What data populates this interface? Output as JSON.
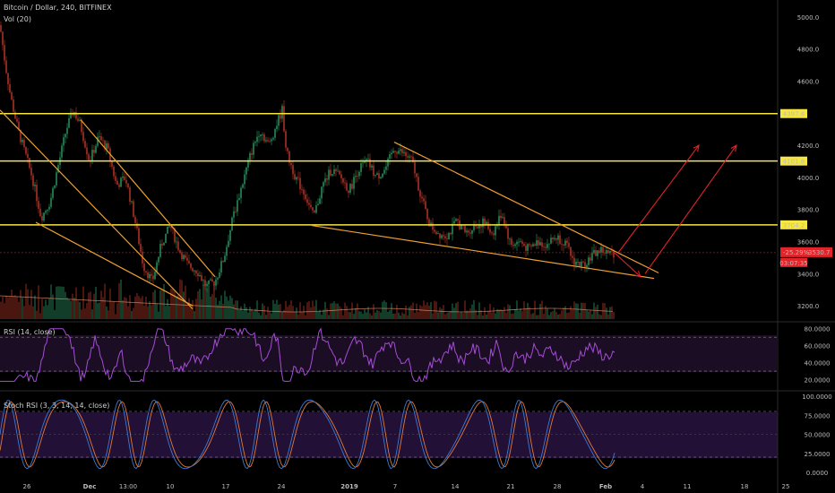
{
  "header": {
    "title": "Bitcoin / Dollar, 240, BITFINEX",
    "volume_label": "Vol (20)",
    "rsi_label": "RSI (14, close)",
    "stoch_label": "Stoch RSI (3, 3, 14, 14, close)"
  },
  "colors": {
    "background": "#000000",
    "up": "#2e9e67",
    "down": "#c0392b",
    "level_line": "#f5e642",
    "trendline": "#f0a030",
    "arrow": "#e0242a",
    "rsi_line": "#a64dd6",
    "rsi_band": "#1a0d24",
    "stoch_k": "#3a7bd5",
    "stoch_d": "#e07a3a",
    "stoch_band": "#3a1a5a",
    "price_badge": "#e0242a",
    "level_badge": "#f5e642"
  },
  "x_axis": {
    "labels": [
      "26",
      "Dec",
      "13:00",
      "10",
      "17",
      "24",
      "2019",
      "7",
      "14",
      "21",
      "28",
      "Feb",
      "4",
      "11",
      "18",
      "25"
    ]
  },
  "price_axis": {
    "labels": [
      "5000.0",
      "4800.0",
      "4600.0",
      "4397.8",
      "4200.0",
      "4101.8",
      "4000.0",
      "3800.0",
      "3704.2",
      "3600.0",
      "3530.7",
      "3400.0",
      "3200.0"
    ],
    "badge_change": "-25.29%",
    "badge_price": "3530.7",
    "badge_countdown": "03:07:35"
  },
  "rsi_axis": {
    "labels": [
      "80.0000",
      "60.0000",
      "40.0000",
      "20.0000"
    ]
  },
  "stoch_axis": {
    "labels": [
      "100.0000",
      "75.0000",
      "50.0000",
      "25.0000",
      "0.0000"
    ]
  },
  "chart_data": {
    "type": "candlestick",
    "symbol": "Bitcoin / Dollar",
    "interval": "240",
    "exchange": "BITFINEX",
    "ylim": [
      3150,
      5050
    ],
    "horizontal_levels": [
      4397.8,
      4101.8,
      3704.2
    ],
    "last_price": 3530.7,
    "price_path_sketch": [
      [
        0,
        4950
      ],
      [
        6,
        4700
      ],
      [
        12,
        4500
      ],
      [
        20,
        4300
      ],
      [
        28,
        4150
      ],
      [
        36,
        4000
      ],
      [
        46,
        3750
      ],
      [
        56,
        3850
      ],
      [
        66,
        4100
      ],
      [
        74,
        4300
      ],
      [
        82,
        4420
      ],
      [
        90,
        4320
      ],
      [
        100,
        4100
      ],
      [
        110,
        4250
      ],
      [
        120,
        4180
      ],
      [
        130,
        3950
      ],
      [
        140,
        4000
      ],
      [
        150,
        3750
      ],
      [
        160,
        3450
      ],
      [
        170,
        3350
      ],
      [
        180,
        3580
      ],
      [
        190,
        3700
      ],
      [
        200,
        3550
      ],
      [
        210,
        3450
      ],
      [
        220,
        3420
      ],
      [
        230,
        3320
      ],
      [
        240,
        3350
      ],
      [
        250,
        3500
      ],
      [
        260,
        3750
      ],
      [
        270,
        3950
      ],
      [
        280,
        4150
      ],
      [
        290,
        4300
      ],
      [
        300,
        4200
      ],
      [
        310,
        4350
      ],
      [
        315,
        4420
      ],
      [
        320,
        4150
      ],
      [
        330,
        4000
      ],
      [
        340,
        3900
      ],
      [
        350,
        3750
      ],
      [
        360,
        3950
      ],
      [
        370,
        4050
      ],
      [
        380,
        4000
      ],
      [
        390,
        3920
      ],
      [
        400,
        4050
      ],
      [
        410,
        4100
      ],
      [
        420,
        4000
      ],
      [
        430,
        4050
      ],
      [
        440,
        4180
      ],
      [
        450,
        4150
      ],
      [
        460,
        4100
      ],
      [
        470,
        3880
      ],
      [
        480,
        3700
      ],
      [
        490,
        3650
      ],
      [
        500,
        3640
      ],
      [
        510,
        3730
      ],
      [
        520,
        3650
      ],
      [
        530,
        3700
      ],
      [
        540,
        3720
      ],
      [
        550,
        3650
      ],
      [
        560,
        3780
      ],
      [
        570,
        3580
      ],
      [
        580,
        3600
      ],
      [
        590,
        3550
      ],
      [
        600,
        3600
      ],
      [
        610,
        3580
      ],
      [
        620,
        3630
      ],
      [
        630,
        3600
      ],
      [
        640,
        3480
      ],
      [
        650,
        3450
      ],
      [
        660,
        3510
      ],
      [
        670,
        3550
      ],
      [
        680,
        3520
      ],
      [
        686,
        3531
      ]
    ],
    "trendlines": [
      {
        "from": [
          0,
          4420
        ],
        "to": [
          215,
          3180
        ]
      },
      {
        "from": [
          40,
          3720
        ],
        "to": [
          215,
          3200
        ]
      },
      {
        "from": [
          90,
          4360
        ],
        "to": [
          240,
          3380
        ]
      },
      {
        "from": [
          348,
          3700
        ],
        "to": [
          730,
          3370
        ]
      },
      {
        "from": [
          440,
          4220
        ],
        "to": [
          735,
          3405
        ]
      }
    ],
    "arrows": [
      {
        "from": [
          686,
          3530
        ],
        "to": [
          715,
          3380
        ]
      },
      {
        "from": [
          690,
          3530
        ],
        "to": [
          780,
          4200
        ]
      },
      {
        "from": [
          720,
          3400
        ],
        "to": [
          822,
          4200
        ]
      }
    ],
    "rsi": {
      "period": 14,
      "levels": [
        70,
        30
      ],
      "range": [
        10,
        85
      ]
    },
    "stoch_rsi": {
      "params": [
        3,
        3,
        14,
        14
      ],
      "levels": [
        80,
        20
      ],
      "range": [
        0,
        100
      ]
    }
  }
}
